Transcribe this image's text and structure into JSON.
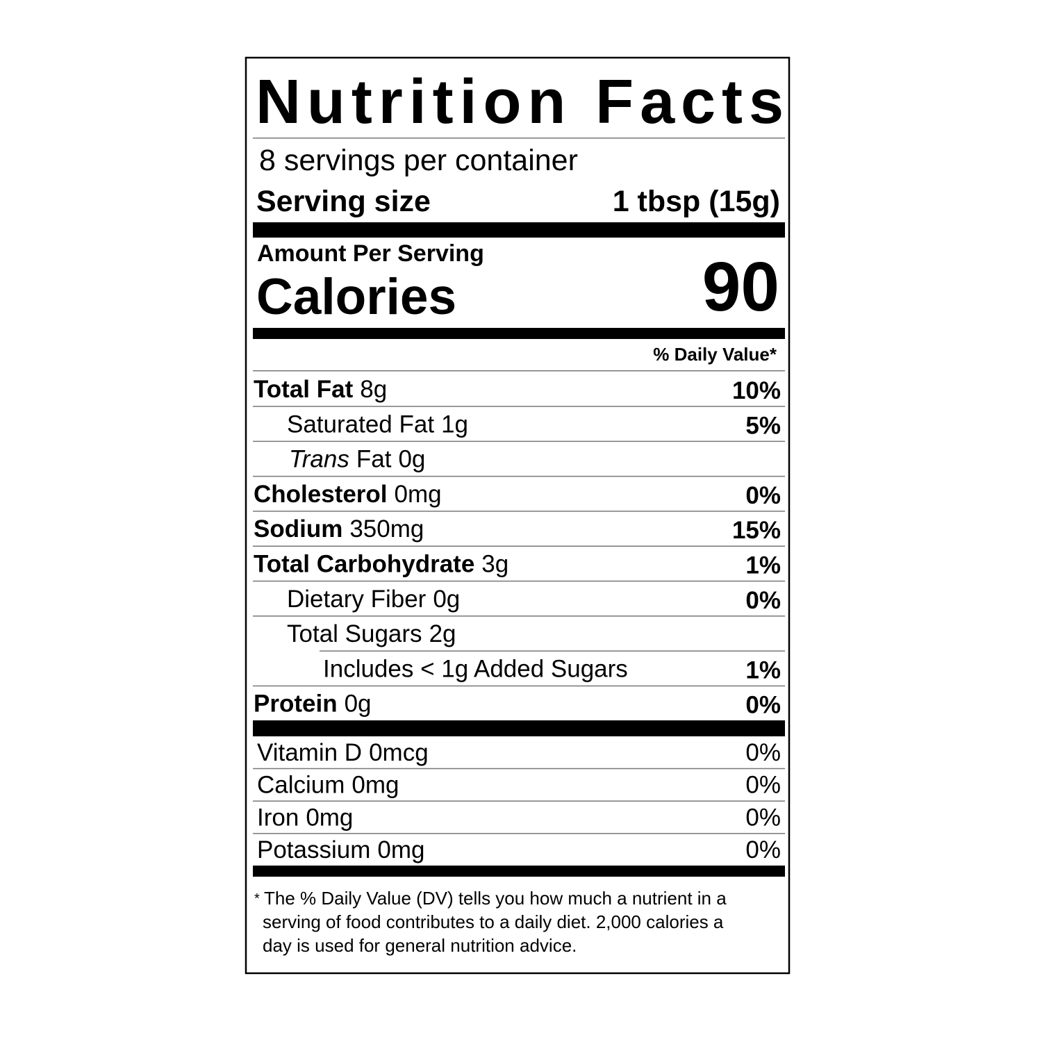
{
  "title": "Nutrition Facts",
  "servings": "8 servings per container",
  "serving_size": {
    "label": "Serving size",
    "value": "1 tbsp (15g)"
  },
  "amount_per_serving": "Amount Per Serving",
  "calories": {
    "label": "Calories",
    "value": "90"
  },
  "dv_header": "% Daily Value*",
  "nutrients": [
    {
      "name": "Total Fat",
      "amount": "8g",
      "dv": "10%",
      "sub": [
        {
          "name": "Saturated Fat",
          "amount": "1g",
          "dv": "5%"
        },
        {
          "name_italic": "Trans",
          "name": "Fat",
          "amount": "0g"
        }
      ]
    },
    {
      "name": "Cholesterol",
      "amount": "0mg",
      "dv": "0%"
    },
    {
      "name": "Sodium",
      "amount": "350mg",
      "dv": "15%"
    },
    {
      "name": "Total Carbohydrate",
      "amount": "3g",
      "dv": "1%",
      "sub": [
        {
          "name": "Dietary Fiber",
          "amount": "0g",
          "dv": "0%"
        },
        {
          "name": "Total Sugars",
          "amount": "2g",
          "sub": [
            {
              "name": "Includes < 1g Added Sugars",
              "dv": "1%"
            }
          ]
        }
      ]
    },
    {
      "name": "Protein",
      "amount": "0g",
      "dv": "0%"
    }
  ],
  "vitamins": [
    {
      "name": "Vitamin D",
      "amount": "0mcg",
      "dv": "0%"
    },
    {
      "name": "Calcium",
      "amount": "0mg",
      "dv": "0%"
    },
    {
      "name": "Iron",
      "amount": "0mg",
      "dv": "0%"
    },
    {
      "name": "Potassium",
      "amount": "0mg",
      "dv": "0%"
    }
  ],
  "footnote": {
    "marker": "*",
    "lines": [
      "The % Daily Value (DV) tells you how much a nutrient in a",
      "serving of food contributes to a daily diet. 2,000 calories a",
      "day is used for general nutrition advice."
    ]
  }
}
